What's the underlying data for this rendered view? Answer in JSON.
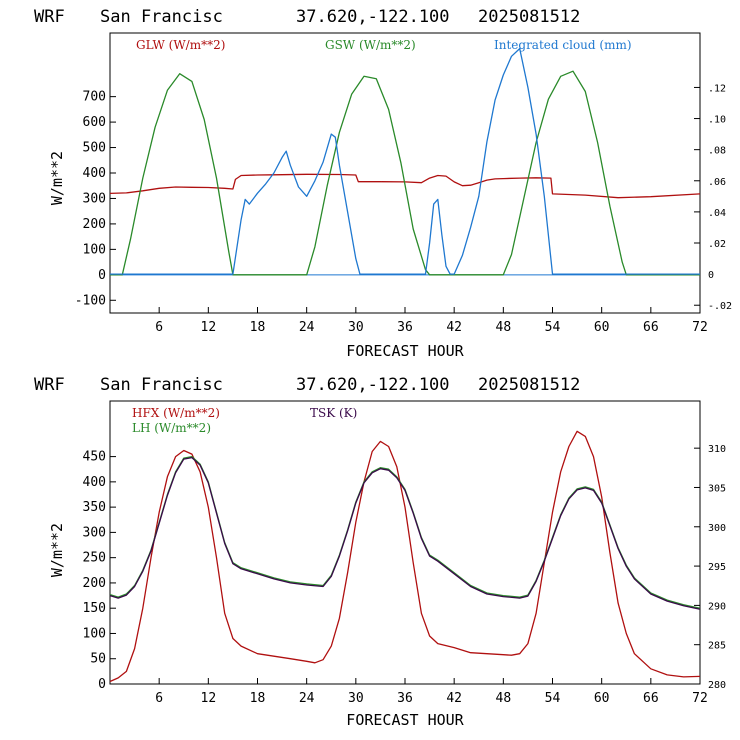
{
  "colors": {
    "red": "#b01010",
    "green": "#2a8a2a",
    "blue": "#1f78d0",
    "purple": "#3a0a4a"
  },
  "chart_data": [
    {
      "type": "line",
      "header": {
        "model": "WRF",
        "location": "San Francisc",
        "coords": "37.620,-122.100",
        "init": "2025081512"
      },
      "xlabel": "FORECAST HOUR",
      "ylabel": "W/m**2",
      "xlim": [
        0,
        72
      ],
      "ylim": [
        -150,
        950
      ],
      "x_ticks": [
        6,
        12,
        18,
        24,
        30,
        36,
        42,
        48,
        54,
        60,
        66,
        72
      ],
      "y_ticks": [
        -100,
        0,
        100,
        200,
        300,
        400,
        500,
        600,
        700
      ],
      "y2lim": [
        -0.025,
        0.155
      ],
      "y2_ticks": [
        -0.02,
        0,
        0.02,
        0.04,
        0.06,
        0.08,
        0.1,
        0.12
      ],
      "y2_tick_labels": [
        "-.02",
        "0",
        ".02",
        ".04",
        ".06",
        ".08",
        ".10",
        ".12"
      ],
      "series": [
        {
          "name": "GLW (W/m**2)",
          "color": "red",
          "axis": "left",
          "x": [
            0,
            2,
            4,
            6,
            8,
            10,
            12,
            14,
            15,
            15.3,
            16,
            18,
            20,
            24,
            28,
            30,
            30.3,
            33,
            36,
            38,
            39,
            40,
            41,
            42,
            43,
            44,
            45,
            46,
            47,
            48,
            50,
            52,
            53.8,
            54,
            58,
            62,
            66,
            72
          ],
          "y": [
            320,
            322,
            330,
            340,
            345,
            344,
            343,
            340,
            337,
            375,
            390,
            392,
            393,
            395,
            394,
            392,
            366,
            366,
            365,
            362,
            380,
            390,
            388,
            365,
            350,
            352,
            362,
            372,
            377,
            378,
            380,
            381,
            380,
            318,
            313,
            303,
            307,
            318
          ]
        },
        {
          "name": "GSW (W/m**2)",
          "color": "green",
          "axis": "left",
          "x": [
            0,
            1.5,
            2.5,
            4,
            5.5,
            7,
            8.5,
            10,
            11.5,
            13,
            14.5,
            15,
            24,
            25,
            26.5,
            28,
            29.5,
            31,
            32.5,
            34,
            35.5,
            37,
            38.5,
            39,
            48,
            49,
            50.5,
            52,
            53.5,
            55,
            56.5,
            58,
            59.5,
            61,
            62.5,
            63,
            72
          ],
          "y": [
            0,
            0,
            140,
            380,
            580,
            725,
            790,
            760,
            610,
            380,
            90,
            0,
            0,
            110,
            350,
            560,
            710,
            780,
            770,
            650,
            440,
            180,
            20,
            0,
            0,
            80,
            300,
            520,
            690,
            780,
            800,
            720,
            520,
            270,
            50,
            0,
            0
          ]
        },
        {
          "name": "Integrated cloud (mm)",
          "color": "blue",
          "axis": "right",
          "x": [
            0,
            15,
            16,
            16.5,
            17,
            18,
            19,
            20,
            21,
            21.5,
            22,
            23,
            24,
            25,
            26,
            27,
            27.5,
            28,
            29,
            30,
            30.5,
            38.5,
            39,
            39.5,
            40,
            40.5,
            41,
            41.5,
            42,
            43,
            44,
            45,
            46,
            47,
            48,
            49,
            50,
            51,
            52,
            53,
            54,
            72
          ],
          "y": [
            0,
            0,
            0.035,
            0.048,
            0.045,
            0.052,
            0.058,
            0.065,
            0.075,
            0.079,
            0.07,
            0.056,
            0.05,
            0.06,
            0.072,
            0.09,
            0.088,
            0.07,
            0.04,
            0.01,
            0,
            0,
            0.02,
            0.045,
            0.048,
            0.025,
            0.005,
            0,
            0,
            0.012,
            0.03,
            0.05,
            0.085,
            0.112,
            0.128,
            0.14,
            0.145,
            0.12,
            0.09,
            0.05,
            0,
            0
          ]
        }
      ]
    },
    {
      "type": "line",
      "header": {
        "model": "WRF",
        "location": "San Francisc",
        "coords": "37.620,-122.100",
        "init": "2025081512"
      },
      "xlabel": "FORECAST HOUR",
      "ylabel": "W/m**2",
      "xlim": [
        0,
        72
      ],
      "ylim": [
        0,
        560
      ],
      "x_ticks": [
        6,
        12,
        18,
        24,
        30,
        36,
        42,
        48,
        54,
        60,
        66,
        72
      ],
      "y_ticks": [
        0,
        50,
        100,
        150,
        200,
        250,
        300,
        350,
        400,
        450
      ],
      "y2lim": [
        280,
        316
      ],
      "y2_ticks": [
        280,
        285,
        290,
        295,
        300,
        305,
        310
      ],
      "y2_tick_labels": [
        "280",
        "285",
        "290",
        "295",
        "300",
        "305",
        "310"
      ],
      "series": [
        {
          "name": "HFX (W/m**2)",
          "color": "red",
          "axis": "left",
          "x": [
            0,
            1,
            2,
            3,
            4,
            5,
            6,
            7,
            8,
            9,
            10,
            11,
            12,
            13,
            14,
            15,
            16,
            18,
            20,
            22,
            24,
            25,
            26,
            27,
            28,
            29,
            30,
            31,
            32,
            33,
            34,
            35,
            36,
            37,
            38,
            39,
            40,
            42,
            44,
            46,
            48,
            49,
            50,
            51,
            52,
            53,
            54,
            55,
            56,
            57,
            58,
            59,
            60,
            61,
            62,
            63,
            64,
            66,
            68,
            70,
            72
          ],
          "y": [
            5,
            12,
            25,
            70,
            150,
            250,
            340,
            410,
            450,
            462,
            455,
            420,
            350,
            250,
            140,
            90,
            75,
            60,
            55,
            50,
            45,
            42,
            48,
            75,
            130,
            220,
            320,
            400,
            460,
            480,
            470,
            430,
            350,
            240,
            140,
            95,
            80,
            72,
            62,
            60,
            58,
            57,
            60,
            80,
            140,
            240,
            340,
            420,
            470,
            500,
            490,
            450,
            370,
            260,
            160,
            100,
            60,
            30,
            18,
            14,
            15
          ]
        },
        {
          "name": "LH (W/m**2)",
          "color": "green",
          "axis": "left",
          "x": [
            0,
            1,
            2,
            3,
            4,
            5,
            6,
            7,
            8,
            9,
            10,
            11,
            12,
            13,
            14,
            15,
            16,
            18,
            20,
            22,
            24,
            26,
            27,
            28,
            29,
            30,
            31,
            32,
            33,
            34,
            35,
            36,
            37,
            38,
            39,
            40,
            42,
            44,
            46,
            48,
            50,
            51,
            52,
            53,
            54,
            55,
            56,
            57,
            58,
            59,
            60,
            61,
            62,
            63,
            64,
            66,
            68,
            70,
            72
          ],
          "y": [
            177,
            172,
            178,
            195,
            225,
            265,
            320,
            375,
            420,
            447,
            450,
            435,
            400,
            340,
            280,
            240,
            230,
            220,
            210,
            202,
            198,
            195,
            215,
            255,
            305,
            360,
            400,
            420,
            428,
            425,
            410,
            385,
            340,
            290,
            255,
            245,
            220,
            195,
            180,
            175,
            172,
            176,
            205,
            245,
            290,
            335,
            368,
            386,
            390,
            385,
            360,
            315,
            270,
            235,
            210,
            180,
            166,
            157,
            150
          ]
        },
        {
          "name": "TSK (K)",
          "color": "purple",
          "axis": "left",
          "x": [
            0,
            1,
            2,
            3,
            4,
            5,
            6,
            7,
            8,
            9,
            10,
            11,
            12,
            13,
            14,
            15,
            16,
            18,
            20,
            22,
            24,
            26,
            27,
            28,
            29,
            30,
            31,
            32,
            33,
            34,
            35,
            36,
            37,
            38,
            39,
            40,
            42,
            44,
            46,
            48,
            50,
            51,
            52,
            53,
            54,
            55,
            56,
            57,
            58,
            59,
            60,
            61,
            62,
            63,
            64,
            66,
            68,
            70,
            72
          ],
          "y": [
            175,
            170,
            176,
            193,
            223,
            263,
            318,
            373,
            418,
            445,
            448,
            433,
            398,
            338,
            278,
            238,
            228,
            218,
            208,
            200,
            196,
            193,
            213,
            253,
            303,
            358,
            398,
            418,
            426,
            423,
            408,
            383,
            338,
            288,
            253,
            243,
            218,
            193,
            178,
            173,
            170,
            174,
            203,
            243,
            288,
            333,
            366,
            384,
            388,
            383,
            358,
            313,
            268,
            233,
            208,
            178,
            164,
            155,
            148
          ]
        }
      ]
    }
  ]
}
